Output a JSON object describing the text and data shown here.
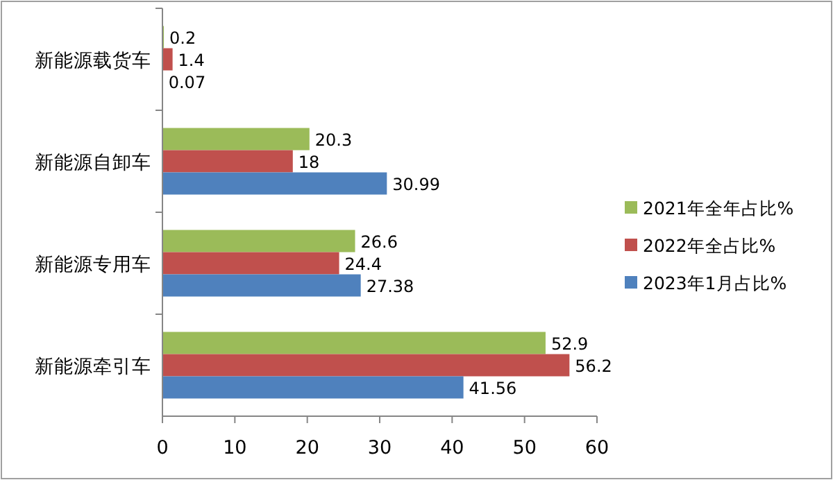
{
  "chart_data": {
    "type": "bar",
    "orientation": "horizontal",
    "categories": [
      "新能源载货车",
      "新能源自卸车",
      "新能源专用车",
      "新能源牵引车"
    ],
    "series": [
      {
        "name": "2021年全年占比%",
        "color": "#9bbb59",
        "values": [
          0.2,
          20.3,
          26.6,
          52.9
        ]
      },
      {
        "name": "2022年全占比%",
        "color": "#c0504d",
        "values": [
          1.4,
          18,
          24.4,
          56.2
        ]
      },
      {
        "name": "2023年1月占比%",
        "color": "#4f81bd",
        "values": [
          0.07,
          30.99,
          27.38,
          41.56
        ]
      }
    ],
    "xlim": [
      0,
      60
    ],
    "xticks": [
      0,
      10,
      20,
      30,
      40,
      50,
      60
    ],
    "data_labels": true,
    "legend": "right",
    "grid": false
  }
}
